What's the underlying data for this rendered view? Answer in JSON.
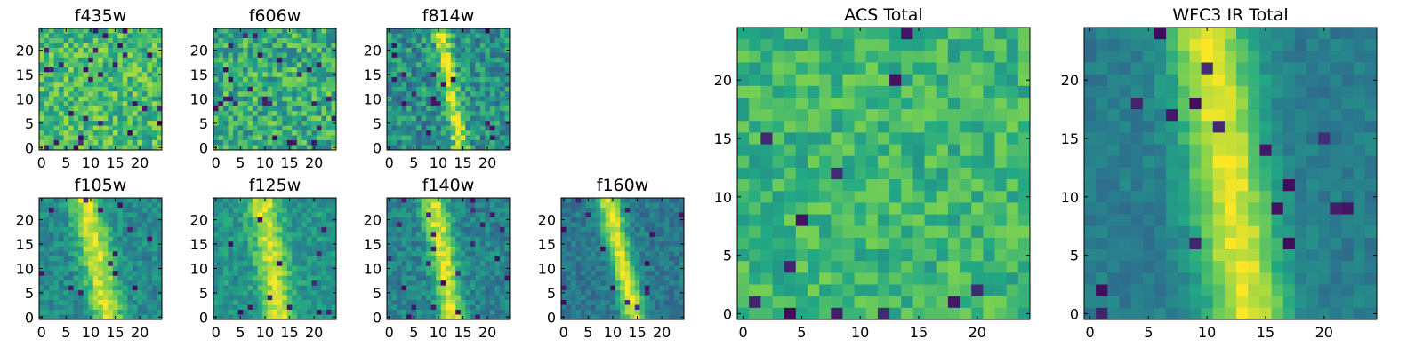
{
  "figure": {
    "colormap": "viridis",
    "colormap_stops": [
      "#440154",
      "#414487",
      "#2a788e",
      "#22a884",
      "#7ad151",
      "#fde725"
    ]
  },
  "chart_data": [
    {
      "type": "heatmap",
      "title": "f435w",
      "grid_size": 25,
      "xlim": [
        0,
        24
      ],
      "ylim": [
        0,
        24
      ],
      "xticks": [
        0,
        5,
        10,
        15,
        20
      ],
      "yticks": [
        0,
        5,
        10,
        15,
        20
      ],
      "structure": "noise",
      "mean_level": 0.68,
      "noise_level": 0.2,
      "dark_pixel_fraction": 0.04,
      "seed": 11
    },
    {
      "type": "heatmap",
      "title": "f606w",
      "grid_size": 25,
      "xlim": [
        0,
        24
      ],
      "ylim": [
        0,
        24
      ],
      "xticks": [
        0,
        5,
        10,
        15,
        20
      ],
      "yticks": [
        0,
        5,
        10,
        15,
        20
      ],
      "structure": "noise",
      "mean_level": 0.62,
      "noise_level": 0.22,
      "dark_pixel_fraction": 0.04,
      "seed": 23
    },
    {
      "type": "heatmap",
      "title": "f814w",
      "grid_size": 25,
      "xlim": [
        0,
        24
      ],
      "ylim": [
        0,
        24
      ],
      "xticks": [
        0,
        5,
        10,
        15,
        20
      ],
      "yticks": [
        0,
        5,
        10,
        15,
        20
      ],
      "structure": "streak",
      "mean_level": 0.5,
      "noise_level": 0.2,
      "dark_pixel_fraction": 0.03,
      "seed": 37,
      "streak": {
        "x_at_top": 10.5,
        "x_at_bottom": 14.5,
        "width": 1.6,
        "peak": 0.45
      }
    },
    {
      "type": "heatmap",
      "title": "f105w",
      "grid_size": 25,
      "xlim": [
        0,
        24
      ],
      "ylim": [
        0,
        24
      ],
      "xticks": [
        0,
        5,
        10,
        15,
        20
      ],
      "yticks": [
        0,
        5,
        10,
        15,
        20
      ],
      "structure": "streak",
      "mean_level": 0.48,
      "noise_level": 0.12,
      "dark_pixel_fraction": 0.02,
      "seed": 41,
      "streak": {
        "x_at_top": 9.0,
        "x_at_bottom": 13.5,
        "width": 3.2,
        "peak": 0.45
      }
    },
    {
      "type": "heatmap",
      "title": "f125w",
      "grid_size": 25,
      "xlim": [
        0,
        24
      ],
      "ylim": [
        0,
        24
      ],
      "xticks": [
        0,
        5,
        10,
        15,
        20
      ],
      "yticks": [
        0,
        5,
        10,
        15,
        20
      ],
      "structure": "streak",
      "mean_level": 0.52,
      "noise_level": 0.12,
      "dark_pixel_fraction": 0.02,
      "seed": 53,
      "streak": {
        "x_at_top": 9.5,
        "x_at_bottom": 13.0,
        "width": 3.0,
        "peak": 0.42
      }
    },
    {
      "type": "heatmap",
      "title": "f140w",
      "grid_size": 25,
      "xlim": [
        0,
        24
      ],
      "ylim": [
        0,
        24
      ],
      "xticks": [
        0,
        5,
        10,
        15,
        20
      ],
      "yticks": [
        0,
        5,
        10,
        15,
        20
      ],
      "structure": "streak",
      "mean_level": 0.45,
      "noise_level": 0.12,
      "dark_pixel_fraction": 0.03,
      "seed": 67,
      "streak": {
        "x_at_top": 9.0,
        "x_at_bottom": 13.0,
        "width": 2.6,
        "peak": 0.5
      }
    },
    {
      "type": "heatmap",
      "title": "f160w",
      "grid_size": 25,
      "xlim": [
        0,
        24
      ],
      "ylim": [
        0,
        24
      ],
      "xticks": [
        0,
        5,
        10,
        15,
        20
      ],
      "yticks": [
        0,
        5,
        10,
        15,
        20
      ],
      "structure": "streak",
      "mean_level": 0.4,
      "noise_level": 0.1,
      "dark_pixel_fraction": 0.03,
      "seed": 79,
      "streak": {
        "x_at_top": 9.0,
        "x_at_bottom": 14.5,
        "width": 2.4,
        "peak": 0.55
      }
    },
    {
      "type": "heatmap",
      "title": "ACS Total",
      "grid_size": 25,
      "xlim": [
        0,
        24
      ],
      "ylim": [
        0,
        24
      ],
      "xticks": [
        0,
        5,
        10,
        15,
        20
      ],
      "yticks": [
        0,
        5,
        10,
        15,
        20
      ],
      "structure": "noise",
      "mean_level": 0.66,
      "noise_level": 0.14,
      "dark_pixel_fraction": 0.015,
      "seed": 97
    },
    {
      "type": "heatmap",
      "title": "WFC3 IR Total",
      "grid_size": 25,
      "xlim": [
        0,
        24
      ],
      "ylim": [
        0,
        24
      ],
      "xticks": [
        0,
        5,
        10,
        15,
        20
      ],
      "yticks": [
        0,
        5,
        10,
        15,
        20
      ],
      "structure": "streak",
      "mean_level": 0.42,
      "noise_level": 0.07,
      "dark_pixel_fraction": 0.02,
      "seed": 101,
      "streak": {
        "x_at_top": 10.0,
        "x_at_bottom": 13.5,
        "width": 3.4,
        "peak": 0.55
      }
    }
  ]
}
